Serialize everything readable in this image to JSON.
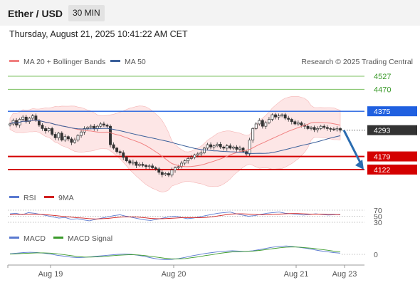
{
  "header": {
    "symbol": "Ether / USD",
    "timeframe": "30 MIN",
    "datetime": "Thursday, August 21, 2025 10:41:22 AM CET"
  },
  "legend": {
    "ma20": "MA 20 + Bollinger Bands",
    "ma50": "MA 50",
    "copyright": "Research © 2025 Trading Central",
    "rsi": "RSI",
    "rsi_ma": "9MA",
    "macd": "MACD",
    "macd_signal": "MACD Signal"
  },
  "colors": {
    "ma20": "#f08080",
    "ma50": "#3a5f9a",
    "bollinger_fill": "#fde0e0",
    "support": "#d40000",
    "resistance": "#2060e0",
    "target": "#7cc060",
    "current": "#333333",
    "forecast_arrow": "#2a6cb0",
    "rsi": "#5a7ad0",
    "rsi_ma": "#d02020",
    "macd": "#5a7ad0",
    "macd_signal": "#3a9a2a"
  },
  "chart_data": {
    "type": "candlestick",
    "price_levels": {
      "targets": [
        4527,
        4470
      ],
      "resistance": 4375,
      "current": 4293,
      "supports": [
        4179,
        4122
      ]
    },
    "ylim": [
      4080,
      4560
    ],
    "x_labels": [
      "Aug 19",
      "Aug 20",
      "Aug 21",
      "Aug 23"
    ],
    "x_label_index": [
      8,
      56,
      104,
      123
    ],
    "forecast": {
      "from": 4293,
      "to": 4122
    },
    "close": [
      4320,
      4335,
      4315,
      4340,
      4350,
      4330,
      4345,
      4355,
      4335,
      4315,
      4300,
      4290,
      4300,
      4275,
      4260,
      4280,
      4250,
      4265,
      4255,
      4240,
      4250,
      4270,
      4285,
      4300,
      4305,
      4310,
      4300,
      4310,
      4320,
      4315,
      4310,
      4230,
      4215,
      4200,
      4195,
      4175,
      4160,
      4150,
      4155,
      4140,
      4145,
      4140,
      4135,
      4138,
      4130,
      4125,
      4110,
      4100,
      4105,
      4098,
      4120,
      4130,
      4135,
      4150,
      4160,
      4170,
      4175,
      4185,
      4190,
      4195,
      4215,
      4230,
      4220,
      4225,
      4232,
      4220,
      4215,
      4225,
      4215,
      4220,
      4210,
      4215,
      4200,
      4190,
      4250,
      4300,
      4320,
      4335,
      4310,
      4325,
      4340,
      4360,
      4350,
      4355,
      4360,
      4345,
      4340,
      4330,
      4320,
      4325,
      4315,
      4310,
      4300,
      4305,
      4295,
      4300,
      4310,
      4305,
      4300,
      4298,
      4295,
      4300,
      4293
    ],
    "rsi": {
      "levels": [
        70,
        50,
        30
      ],
      "rsi": [
        58,
        60,
        55,
        62,
        60,
        56,
        52,
        48,
        44,
        46,
        40,
        42,
        38,
        35,
        40,
        44,
        48,
        52,
        55,
        50,
        46,
        42,
        38,
        36,
        40,
        44,
        48,
        50,
        46,
        42,
        44,
        48,
        52,
        56,
        60,
        62,
        64,
        58,
        54,
        50,
        52,
        56,
        60,
        62,
        64,
        60,
        58,
        56,
        54,
        56,
        58,
        56,
        54,
        55,
        56
      ],
      "ma9": [
        55,
        56,
        56,
        57,
        57,
        56,
        55,
        53,
        51,
        49,
        47,
        45,
        44,
        42,
        41,
        42,
        43,
        45,
        47,
        48,
        48,
        47,
        45,
        43,
        42,
        42,
        43,
        44,
        45,
        45,
        45,
        45,
        46,
        48,
        51,
        54,
        57,
        58,
        58,
        57,
        56,
        55,
        55,
        56,
        57,
        58,
        59,
        59,
        58,
        57,
        57,
        57,
        56,
        56,
        55
      ]
    },
    "macd": {
      "zero_label": "0",
      "macd": [
        2,
        4,
        6,
        7,
        6,
        4,
        1,
        -3,
        -6,
        -9,
        -11,
        -10,
        -8,
        -6,
        -4,
        -2,
        0,
        1,
        0,
        -3,
        -7,
        -12,
        -16,
        -18,
        -17,
        -14,
        -10,
        -5,
        -1,
        3,
        6,
        9,
        11,
        12,
        11,
        10,
        12,
        16,
        20,
        24,
        27,
        28,
        26,
        23,
        20,
        16,
        12,
        9,
        6,
        4
      ],
      "signal": [
        1,
        2,
        3,
        4,
        5,
        5,
        4,
        2,
        -1,
        -4,
        -7,
        -9,
        -9,
        -8,
        -7,
        -5,
        -3,
        -2,
        -1,
        -2,
        -4,
        -7,
        -10,
        -13,
        -15,
        -15,
        -14,
        -11,
        -8,
        -4,
        -1,
        3,
        6,
        8,
        9,
        10,
        11,
        13,
        16,
        19,
        22,
        24,
        25,
        24,
        22,
        20,
        17,
        14,
        11,
        8
      ]
    }
  }
}
